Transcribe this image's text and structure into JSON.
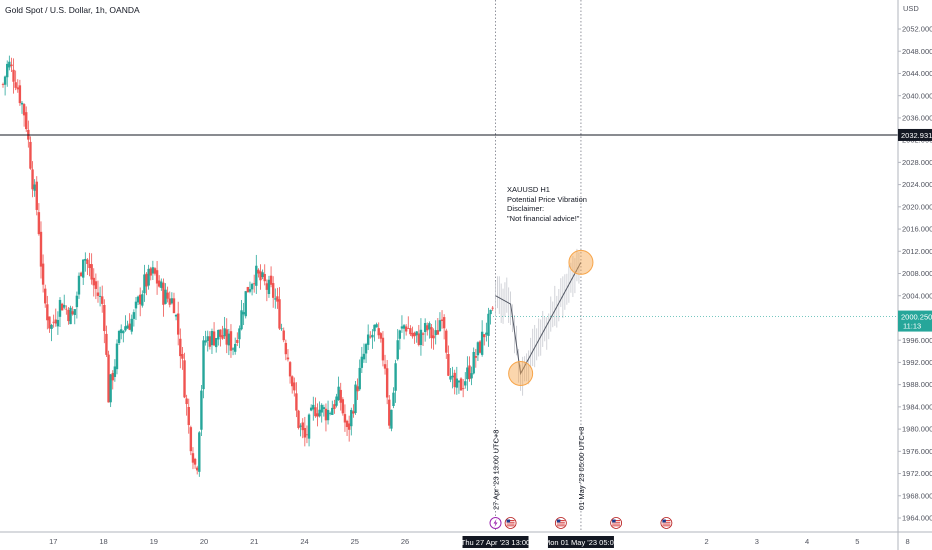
{
  "header": {
    "title": "Gold Spot / U.S. Dollar, 1h, OANDA"
  },
  "annotation": {
    "lines": [
      "XAUUSD H1",
      "Potential Price Vibration",
      "",
      "Disclaimer:",
      "\"Not financial advice!\""
    ]
  },
  "colors": {
    "up": "#26a69a",
    "down": "#ef5350",
    "last_price_bg": "#26a69a",
    "crosshair_bg": "#131722",
    "highlight": "#f7a54a"
  },
  "chart_data": {
    "type": "candlestick",
    "currency_label": "USD",
    "y_ticks": [
      1964,
      1968,
      1972,
      1976,
      1980,
      1984,
      1988,
      1992,
      1996,
      2000,
      2004,
      2008,
      2012,
      2016,
      2020,
      2024,
      2028,
      2032,
      2036,
      2040,
      2044,
      2048,
      2052
    ],
    "ylim": [
      1962,
      2056
    ],
    "x_ticks": [
      {
        "label": "17",
        "pos": 17
      },
      {
        "label": "18",
        "pos": 18
      },
      {
        "label": "19",
        "pos": 19
      },
      {
        "label": "20",
        "pos": 20
      },
      {
        "label": "21",
        "pos": 21
      },
      {
        "label": "24",
        "pos": 22
      },
      {
        "label": "25",
        "pos": 23
      },
      {
        "label": "26",
        "pos": 24
      },
      {
        "label": "2",
        "pos": 30
      },
      {
        "label": "3",
        "pos": 31
      },
      {
        "label": "4",
        "pos": 32
      },
      {
        "label": "5",
        "pos": 33
      },
      {
        "label": "8",
        "pos": 34
      }
    ],
    "horizontal_line": {
      "price": 2032.931,
      "label": "2032.931"
    },
    "last_price": {
      "price": 2000.25,
      "label": "2000.250",
      "countdown": "11:13"
    },
    "vertical_markers": [
      {
        "pos": 25.8,
        "axis_label": "Thu 27 Apr '23   13:00",
        "rotated_label": "27 Apr '23 13:00 UTC+8"
      },
      {
        "pos": 27.5,
        "axis_label": "Mon 01 May '23   05:00",
        "rotated_label": "01 May '23 05:00 UTC+8"
      }
    ],
    "projection_path": [
      {
        "pos": 25.8,
        "price": 2004
      },
      {
        "pos": 26.1,
        "price": 2002.5
      },
      {
        "pos": 26.3,
        "price": 1990
      },
      {
        "pos": 27.5,
        "price": 2010
      }
    ],
    "highlight_circles": [
      {
        "pos": 26.3,
        "price": 1990
      },
      {
        "pos": 27.5,
        "price": 2010
      }
    ],
    "event_icons": [
      {
        "pos": 25.8,
        "kind": "lightning"
      },
      {
        "pos": 26.1,
        "kind": "us-flag"
      },
      {
        "pos": 27.1,
        "kind": "us-flag"
      },
      {
        "pos": 28.2,
        "kind": "us-flag"
      },
      {
        "pos": 29.2,
        "kind": "us-flag"
      }
    ],
    "close_path": [
      {
        "pos": 16.0,
        "price": 2042
      },
      {
        "pos": 16.1,
        "price": 2046
      },
      {
        "pos": 16.25,
        "price": 2043
      },
      {
        "pos": 16.45,
        "price": 2036
      },
      {
        "pos": 16.6,
        "price": 2024
      },
      {
        "pos": 16.7,
        "price": 2018
      },
      {
        "pos": 16.8,
        "price": 2004
      },
      {
        "pos": 16.95,
        "price": 1998
      },
      {
        "pos": 17.15,
        "price": 2003
      },
      {
        "pos": 17.4,
        "price": 2000
      },
      {
        "pos": 17.6,
        "price": 2012
      },
      {
        "pos": 17.8,
        "price": 2006
      },
      {
        "pos": 18.0,
        "price": 2002
      },
      {
        "pos": 18.1,
        "price": 1986
      },
      {
        "pos": 18.35,
        "price": 1998
      },
      {
        "pos": 18.6,
        "price": 2000
      },
      {
        "pos": 18.8,
        "price": 2006
      },
      {
        "pos": 19.0,
        "price": 2008
      },
      {
        "pos": 19.2,
        "price": 2004
      },
      {
        "pos": 19.4,
        "price": 2003
      },
      {
        "pos": 19.55,
        "price": 1993
      },
      {
        "pos": 19.7,
        "price": 1980
      },
      {
        "pos": 19.85,
        "price": 1972
      },
      {
        "pos": 20.0,
        "price": 1996
      },
      {
        "pos": 20.3,
        "price": 1997
      },
      {
        "pos": 20.6,
        "price": 1995
      },
      {
        "pos": 20.85,
        "price": 2005
      },
      {
        "pos": 21.0,
        "price": 2008
      },
      {
        "pos": 21.2,
        "price": 2006
      },
      {
        "pos": 21.4,
        "price": 2004
      },
      {
        "pos": 21.55,
        "price": 1998
      },
      {
        "pos": 21.7,
        "price": 1992
      },
      {
        "pos": 21.85,
        "price": 1982
      },
      {
        "pos": 22.0,
        "price": 1978
      },
      {
        "pos": 22.2,
        "price": 1984
      },
      {
        "pos": 22.45,
        "price": 1983
      },
      {
        "pos": 22.7,
        "price": 1986
      },
      {
        "pos": 22.85,
        "price": 1979
      },
      {
        "pos": 23.0,
        "price": 1986
      },
      {
        "pos": 23.2,
        "price": 1994
      },
      {
        "pos": 23.4,
        "price": 1998
      },
      {
        "pos": 23.6,
        "price": 1992
      },
      {
        "pos": 23.7,
        "price": 1980
      },
      {
        "pos": 23.85,
        "price": 1996
      },
      {
        "pos": 24.0,
        "price": 1999
      },
      {
        "pos": 24.2,
        "price": 1996
      },
      {
        "pos": 24.45,
        "price": 1998
      },
      {
        "pos": 24.6,
        "price": 1996
      },
      {
        "pos": 24.75,
        "price": 2002
      },
      {
        "pos": 24.9,
        "price": 1988
      },
      {
        "pos": 25.05,
        "price": 1987
      },
      {
        "pos": 25.25,
        "price": 1990
      },
      {
        "pos": 25.45,
        "price": 1994
      },
      {
        "pos": 25.6,
        "price": 1998
      },
      {
        "pos": 25.75,
        "price": 2000.25
      }
    ]
  }
}
